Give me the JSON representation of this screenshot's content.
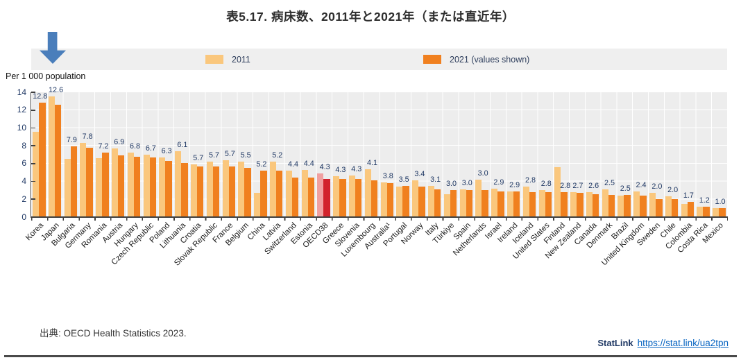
{
  "title": "表5.17. 病床数、2011年と2021年（または直近年）",
  "y_axis_title": "Per 1 000 population",
  "legend": {
    "item_2011": "2011",
    "item_2021": "2021 (values shown)"
  },
  "source": "出典: OECD Health Statistics 2023.",
  "statlink": {
    "label": "StatLink",
    "url": "https://stat.link/ua2tpn"
  },
  "colors": {
    "bar_2011": "#FAC77D",
    "bar_2021": "#F0801F",
    "oecd38_2011": "#F0A0A0",
    "oecd38_2021": "#D2232C",
    "arrow": "#4A7EBB",
    "link": "#0563C1",
    "label_text": "#1F3864",
    "plot_background": "#EDEDED",
    "legend_background": "#EFEFEF"
  },
  "chart_data": {
    "type": "bar",
    "title": "表5.17. 病床数、2011年と2021年（または直近年）",
    "xlabel": "",
    "ylabel": "Per 1 000 population",
    "ylim": [
      0,
      14
    ],
    "yticks": [
      0,
      2,
      4,
      6,
      8,
      10,
      12,
      14
    ],
    "grid": true,
    "legend_position": "top",
    "highlight_category": "OECD38",
    "value_labels_series": "2021 (values shown)",
    "categories": [
      "Korea",
      "Japan",
      "Bulgaria",
      "Germany",
      "Romania",
      "Austria",
      "Hungary",
      "Czech Republic",
      "Poland",
      "Lithuania",
      "Croatia",
      "Slovak Republic",
      "France",
      "Belgium",
      "China",
      "Latvia",
      "Switzerland",
      "Estonia",
      "OECD38",
      "Greece",
      "Slovenia",
      "Luxembourg",
      "Australia¹",
      "Portugal",
      "Norway",
      "Italy",
      "Türkiye",
      "Spain",
      "Netherlands",
      "Israel",
      "Ireland",
      "Iceland",
      "United States",
      "Finland",
      "New Zealand",
      "Canada",
      "Denmark",
      "Brazil",
      "United Kingdom",
      "Sweden",
      "Chile",
      "Colombia",
      "Costa Rica",
      "Mexico"
    ],
    "series": [
      {
        "name": "2011",
        "values": [
          9.6,
          13.5,
          6.5,
          8.3,
          6.6,
          7.7,
          7.2,
          7.0,
          6.7,
          7.4,
          5.9,
          6.2,
          6.4,
          6.2,
          2.7,
          6.2,
          5.2,
          5.3,
          4.9,
          4.6,
          4.7,
          5.4,
          3.9,
          3.4,
          4.1,
          3.5,
          2.6,
          3.1,
          4.2,
          3.2,
          2.9,
          3.4,
          3.0,
          5.6,
          2.8,
          2.8,
          3.1,
          2.4,
          2.9,
          2.7,
          2.3,
          1.5,
          1.2,
          1.0
        ],
        "note": "values estimated from bar heights (not labeled in figure)"
      },
      {
        "name": "2021 (values shown)",
        "values": [
          12.8,
          12.6,
          7.9,
          7.8,
          7.2,
          6.9,
          6.8,
          6.7,
          6.3,
          6.1,
          5.7,
          5.7,
          5.7,
          5.5,
          5.2,
          5.2,
          4.4,
          4.4,
          4.3,
          4.3,
          4.3,
          4.1,
          3.8,
          3.5,
          3.4,
          3.1,
          3.0,
          3.0,
          3.0,
          2.9,
          2.9,
          2.8,
          2.8,
          2.8,
          2.7,
          2.6,
          2.5,
          2.5,
          2.4,
          2.0,
          2.0,
          1.7,
          1.2,
          1.0
        ]
      }
    ]
  }
}
